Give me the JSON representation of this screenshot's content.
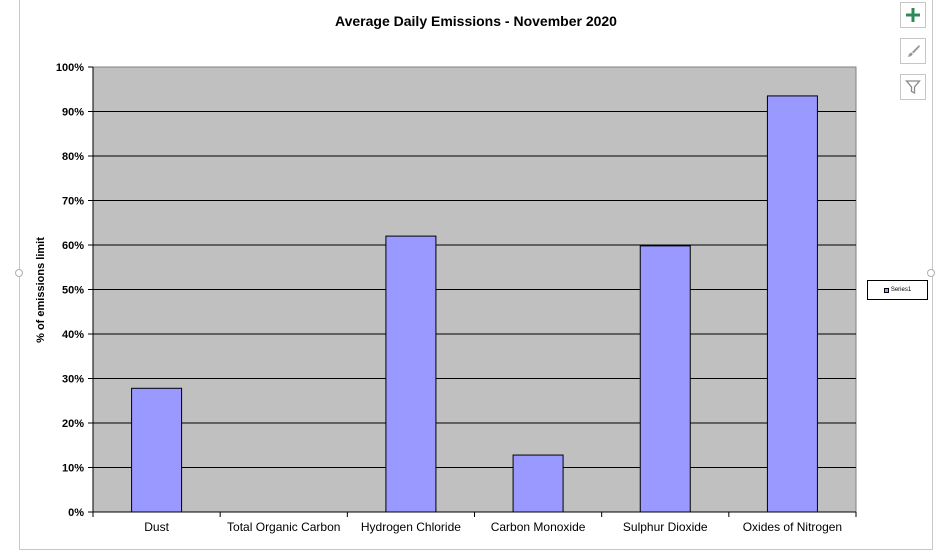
{
  "chart_data": {
    "type": "bar",
    "title": "Average Daily Emissions - November 2020",
    "ylabel": "% of emissions limit",
    "xlabel": "",
    "categories": [
      "Dust",
      "Total Organic Carbon",
      "Hydrogen Chloride",
      "Carbon Monoxide",
      "Sulphur Dioxide",
      "Oxides of Nitrogen"
    ],
    "series": [
      {
        "name": "Series1",
        "values": [
          0.278,
          0.0,
          0.62,
          0.128,
          0.598,
          0.935
        ]
      }
    ],
    "ylim": [
      0,
      1
    ],
    "yticks": [
      "0%",
      "10%",
      "20%",
      "30%",
      "40%",
      "50%",
      "60%",
      "70%",
      "80%",
      "90%",
      "100%"
    ],
    "grid": true,
    "legend_position": "right",
    "colors": {
      "bar": "#9999ff",
      "plot_background": "#c0c0c0",
      "gridline": "#000000"
    }
  },
  "toolbar": {
    "add_icon": "plus-icon",
    "style_icon": "brush-icon",
    "filter_icon": "funnel-icon"
  }
}
